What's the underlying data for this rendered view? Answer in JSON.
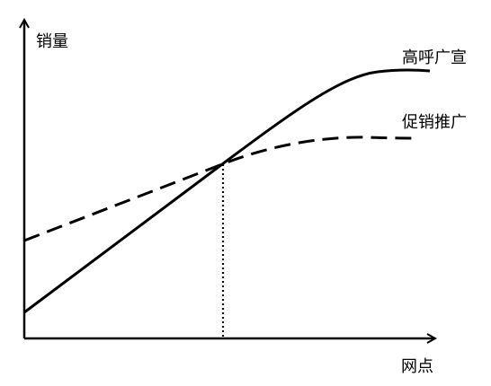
{
  "diagram": {
    "y_axis_label": "销量",
    "x_axis_label": "网点",
    "curves": [
      {
        "id": "solid",
        "label": "高呼广宣",
        "style": "solid",
        "color": "#000000"
      },
      {
        "id": "dashed",
        "label": "促销推广",
        "style": "dashed",
        "color": "#000000"
      }
    ],
    "intersection_guide": {
      "style": "dotted",
      "color": "#000000"
    }
  }
}
